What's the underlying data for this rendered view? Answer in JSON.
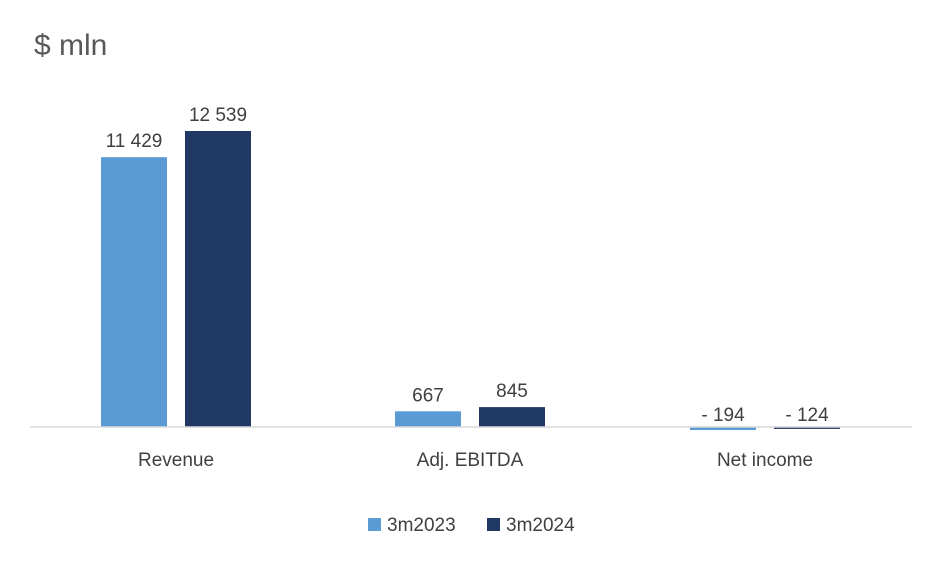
{
  "chart_data": {
    "type": "bar",
    "title": "$ mln",
    "categories": [
      "Revenue",
      "Adj. EBITDA",
      "Net income"
    ],
    "series": [
      {
        "name": "3m2023",
        "values": [
          11429,
          667,
          -194
        ],
        "labels": [
          "11 429",
          "667",
          "- 194"
        ],
        "color": "#5B9BD5"
      },
      {
        "name": "3m2024",
        "values": [
          12539,
          845,
          -124
        ],
        "labels": [
          "12 539",
          "845",
          "- 124"
        ],
        "color": "#1F3864"
      }
    ],
    "ylim": [
      -194,
      12539
    ],
    "grid": false,
    "legend_position": "bottom",
    "axis_color": "#D9D9D9"
  }
}
